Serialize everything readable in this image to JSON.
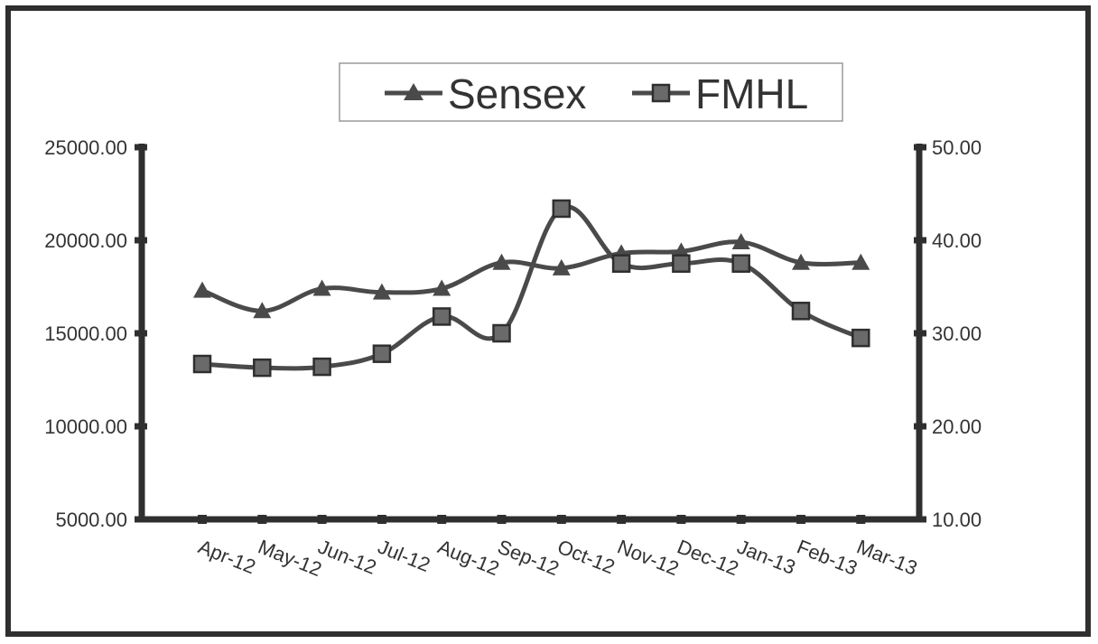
{
  "chart_data": {
    "type": "line",
    "title": "",
    "categories": [
      "Apr-12",
      "May-12",
      "Jun-12",
      "Jul-12",
      "Aug-12",
      "Sep-12",
      "Oct-12",
      "Nov-12",
      "Dec-12",
      "Jan-13",
      "Feb-13",
      "Mar-13"
    ],
    "y_left": {
      "ylim": [
        5000,
        25000
      ],
      "ticks": [
        "5000.00",
        "10000.00",
        "15000.00",
        "20000.00",
        "25000.00"
      ]
    },
    "y_right": {
      "ylim": [
        10,
        50
      ],
      "ticks": [
        "10.00",
        "20.00",
        "30.00",
        "40.00",
        "50.00"
      ]
    },
    "series": [
      {
        "name": "Sensex",
        "axis": "left",
        "marker": "triangle",
        "values": [
          17300,
          16200,
          17400,
          17200,
          17400,
          18800,
          18500,
          19300,
          19400,
          19900,
          18800,
          18800
        ]
      },
      {
        "name": "FMHL",
        "axis": "right",
        "marker": "square",
        "values": [
          26.7,
          26.3,
          26.4,
          27.8,
          31.8,
          30.0,
          43.4,
          37.5,
          37.5,
          37.5,
          32.4,
          29.5
        ]
      }
    ],
    "legend_position": "top-center",
    "grid": false,
    "colors": {
      "line": "#4a4a4a",
      "axis": "#2f2f2f",
      "marker": "#4a4a4a",
      "frame": "#2f2f2f"
    }
  }
}
